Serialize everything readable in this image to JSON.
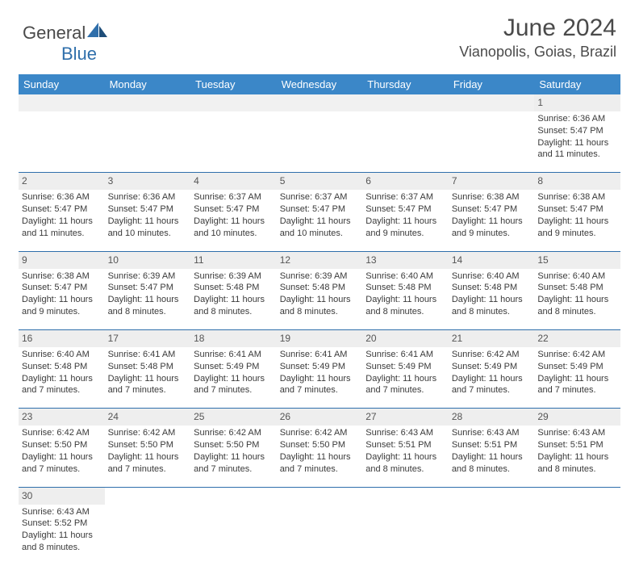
{
  "brand": {
    "name_a": "General",
    "name_b": "Blue"
  },
  "title": "June 2024",
  "location": "Vianopolis, Goias, Brazil",
  "colors": {
    "header_bg": "#3b87c8",
    "rule": "#2f6fab",
    "alt_bg": "#eeeeee",
    "text": "#3a3a3a"
  },
  "days_of_week": [
    "Sunday",
    "Monday",
    "Tuesday",
    "Wednesday",
    "Thursday",
    "Friday",
    "Saturday"
  ],
  "weeks": [
    [
      null,
      null,
      null,
      null,
      null,
      null,
      {
        "n": "1",
        "sr": "Sunrise: 6:36 AM",
        "ss": "Sunset: 5:47 PM",
        "dl": "Daylight: 11 hours and 11 minutes."
      }
    ],
    [
      {
        "n": "2",
        "sr": "Sunrise: 6:36 AM",
        "ss": "Sunset: 5:47 PM",
        "dl": "Daylight: 11 hours and 11 minutes."
      },
      {
        "n": "3",
        "sr": "Sunrise: 6:36 AM",
        "ss": "Sunset: 5:47 PM",
        "dl": "Daylight: 11 hours and 10 minutes."
      },
      {
        "n": "4",
        "sr": "Sunrise: 6:37 AM",
        "ss": "Sunset: 5:47 PM",
        "dl": "Daylight: 11 hours and 10 minutes."
      },
      {
        "n": "5",
        "sr": "Sunrise: 6:37 AM",
        "ss": "Sunset: 5:47 PM",
        "dl": "Daylight: 11 hours and 10 minutes."
      },
      {
        "n": "6",
        "sr": "Sunrise: 6:37 AM",
        "ss": "Sunset: 5:47 PM",
        "dl": "Daylight: 11 hours and 9 minutes."
      },
      {
        "n": "7",
        "sr": "Sunrise: 6:38 AM",
        "ss": "Sunset: 5:47 PM",
        "dl": "Daylight: 11 hours and 9 minutes."
      },
      {
        "n": "8",
        "sr": "Sunrise: 6:38 AM",
        "ss": "Sunset: 5:47 PM",
        "dl": "Daylight: 11 hours and 9 minutes."
      }
    ],
    [
      {
        "n": "9",
        "sr": "Sunrise: 6:38 AM",
        "ss": "Sunset: 5:47 PM",
        "dl": "Daylight: 11 hours and 9 minutes."
      },
      {
        "n": "10",
        "sr": "Sunrise: 6:39 AM",
        "ss": "Sunset: 5:47 PM",
        "dl": "Daylight: 11 hours and 8 minutes."
      },
      {
        "n": "11",
        "sr": "Sunrise: 6:39 AM",
        "ss": "Sunset: 5:48 PM",
        "dl": "Daylight: 11 hours and 8 minutes."
      },
      {
        "n": "12",
        "sr": "Sunrise: 6:39 AM",
        "ss": "Sunset: 5:48 PM",
        "dl": "Daylight: 11 hours and 8 minutes."
      },
      {
        "n": "13",
        "sr": "Sunrise: 6:40 AM",
        "ss": "Sunset: 5:48 PM",
        "dl": "Daylight: 11 hours and 8 minutes."
      },
      {
        "n": "14",
        "sr": "Sunrise: 6:40 AM",
        "ss": "Sunset: 5:48 PM",
        "dl": "Daylight: 11 hours and 8 minutes."
      },
      {
        "n": "15",
        "sr": "Sunrise: 6:40 AM",
        "ss": "Sunset: 5:48 PM",
        "dl": "Daylight: 11 hours and 8 minutes."
      }
    ],
    [
      {
        "n": "16",
        "sr": "Sunrise: 6:40 AM",
        "ss": "Sunset: 5:48 PM",
        "dl": "Daylight: 11 hours and 7 minutes."
      },
      {
        "n": "17",
        "sr": "Sunrise: 6:41 AM",
        "ss": "Sunset: 5:48 PM",
        "dl": "Daylight: 11 hours and 7 minutes."
      },
      {
        "n": "18",
        "sr": "Sunrise: 6:41 AM",
        "ss": "Sunset: 5:49 PM",
        "dl": "Daylight: 11 hours and 7 minutes."
      },
      {
        "n": "19",
        "sr": "Sunrise: 6:41 AM",
        "ss": "Sunset: 5:49 PM",
        "dl": "Daylight: 11 hours and 7 minutes."
      },
      {
        "n": "20",
        "sr": "Sunrise: 6:41 AM",
        "ss": "Sunset: 5:49 PM",
        "dl": "Daylight: 11 hours and 7 minutes."
      },
      {
        "n": "21",
        "sr": "Sunrise: 6:42 AM",
        "ss": "Sunset: 5:49 PM",
        "dl": "Daylight: 11 hours and 7 minutes."
      },
      {
        "n": "22",
        "sr": "Sunrise: 6:42 AM",
        "ss": "Sunset: 5:49 PM",
        "dl": "Daylight: 11 hours and 7 minutes."
      }
    ],
    [
      {
        "n": "23",
        "sr": "Sunrise: 6:42 AM",
        "ss": "Sunset: 5:50 PM",
        "dl": "Daylight: 11 hours and 7 minutes."
      },
      {
        "n": "24",
        "sr": "Sunrise: 6:42 AM",
        "ss": "Sunset: 5:50 PM",
        "dl": "Daylight: 11 hours and 7 minutes."
      },
      {
        "n": "25",
        "sr": "Sunrise: 6:42 AM",
        "ss": "Sunset: 5:50 PM",
        "dl": "Daylight: 11 hours and 7 minutes."
      },
      {
        "n": "26",
        "sr": "Sunrise: 6:42 AM",
        "ss": "Sunset: 5:50 PM",
        "dl": "Daylight: 11 hours and 7 minutes."
      },
      {
        "n": "27",
        "sr": "Sunrise: 6:43 AM",
        "ss": "Sunset: 5:51 PM",
        "dl": "Daylight: 11 hours and 8 minutes."
      },
      {
        "n": "28",
        "sr": "Sunrise: 6:43 AM",
        "ss": "Sunset: 5:51 PM",
        "dl": "Daylight: 11 hours and 8 minutes."
      },
      {
        "n": "29",
        "sr": "Sunrise: 6:43 AM",
        "ss": "Sunset: 5:51 PM",
        "dl": "Daylight: 11 hours and 8 minutes."
      }
    ],
    [
      {
        "n": "30",
        "sr": "Sunrise: 6:43 AM",
        "ss": "Sunset: 5:52 PM",
        "dl": "Daylight: 11 hours and 8 minutes."
      },
      null,
      null,
      null,
      null,
      null,
      null
    ]
  ]
}
